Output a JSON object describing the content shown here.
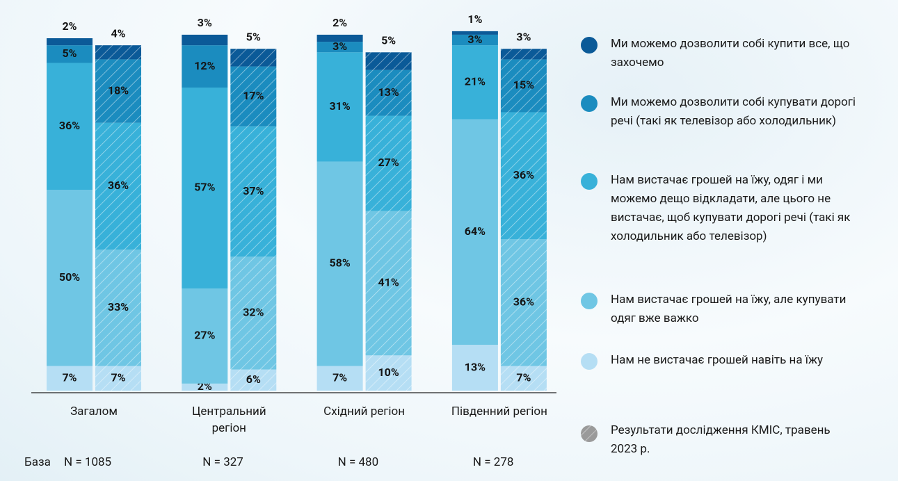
{
  "chart_data": {
    "type": "stacked_bar",
    "categories": [
      "Загалом",
      "Центральний регіон",
      "Східний регіон",
      "Південний регіон"
    ],
    "base_label": "База",
    "bases": [
      "N = 1085",
      "N = 327",
      "N = 480",
      "N = 278"
    ],
    "ylim": [
      0,
      100
    ],
    "hatched_legend": "Результати дослідження КМІС, травень 2023 р.",
    "series": [
      {
        "name": "Нам не вистачає грошей навіть на їжу",
        "color": "#b5def4",
        "values": [
          7,
          2,
          7,
          13
        ],
        "value_labels": [
          "7%",
          "2%",
          "7%",
          "13%"
        ],
        "hatched_values": [
          7,
          6,
          10,
          7
        ],
        "hatched_value_labels": [
          "7%",
          "6%",
          "10%",
          "7%"
        ]
      },
      {
        "name": "Нам вистачає грошей на їжу, але купувати одяг вже важко",
        "color": "#6fc6e4",
        "values": [
          50,
          27,
          58,
          64
        ],
        "value_labels": [
          "50%",
          "27%",
          "58%",
          "64%"
        ],
        "hatched_values": [
          33,
          32,
          41,
          36
        ],
        "hatched_value_labels": [
          "33%",
          "32%",
          "41%",
          "36%"
        ]
      },
      {
        "name": "Нам вистачає грошей на їжу, одяг і ми можемо дещо відкладати, але цього не вистачає, щоб купувати дорогі речі (такі як холодильник або телевізор)",
        "color": "#38b1d9",
        "values": [
          36,
          57,
          31,
          21
        ],
        "value_labels": [
          "36%",
          "57%",
          "31%",
          "21%"
        ],
        "hatched_values": [
          36,
          37,
          27,
          36
        ],
        "hatched_value_labels": [
          "36%",
          "37%",
          "27%",
          "36%"
        ]
      },
      {
        "name": "Ми можемо дозволити собі купувати дорогі речі (такі як телевізор або холодильник)",
        "color": "#1b8cbf",
        "values": [
          5,
          12,
          3,
          3
        ],
        "value_labels": [
          "5%",
          "12%",
          "3%",
          "3%"
        ],
        "hatched_values": [
          18,
          17,
          13,
          15
        ],
        "hatched_value_labels": [
          "18%",
          "17%",
          "13%",
          "15%"
        ]
      },
      {
        "name": "Ми можемо дозволити собі купити все, що захочемо",
        "color": "#0b5a98",
        "values": [
          2,
          3,
          2,
          1
        ],
        "value_labels": [
          "2%",
          "3%",
          "2%",
          "1%"
        ],
        "hatched_values": [
          4,
          5,
          5,
          3
        ],
        "hatched_value_labels": [
          "4%",
          "5%",
          "5%",
          "3%"
        ]
      }
    ]
  }
}
